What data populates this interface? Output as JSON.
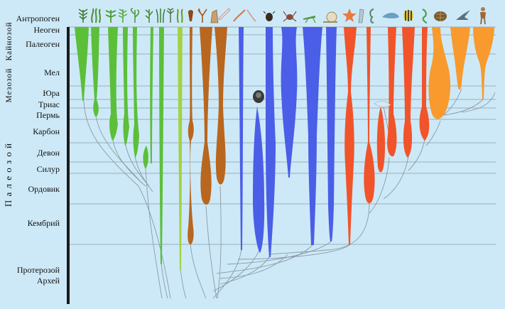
{
  "colors": {
    "background": "#cde9f7",
    "plants_dark": "#5cbf3a",
    "plants_light": "#9ad24a",
    "brown": "#b9661f",
    "blue": "#4a5ee8",
    "red": "#f1542a",
    "orange": "#f89a2e",
    "lines": "#8a9aa4"
  },
  "eras": [
    {
      "id": "kainozoi",
      "label": "Кайнозой"
    },
    {
      "id": "mezozoi",
      "label": "Мезозой"
    },
    {
      "id": "paleozoi",
      "label": "П а л е о з о й"
    }
  ],
  "periods": [
    {
      "id": "antropogen",
      "label": "Антропоген"
    },
    {
      "id": "neogen",
      "label": "Неоген"
    },
    {
      "id": "paleogen",
      "label": "Палеоген"
    },
    {
      "id": "mel",
      "label": "Мел"
    },
    {
      "id": "yura",
      "label": "Юра"
    },
    {
      "id": "trias",
      "label": "Триас"
    },
    {
      "id": "perm",
      "label": "Пермь"
    },
    {
      "id": "karbon",
      "label": "Карбон"
    },
    {
      "id": "devon",
      "label": "Девон"
    },
    {
      "id": "silur",
      "label": "Силур"
    },
    {
      "id": "ordovik",
      "label": "Ордовик"
    },
    {
      "id": "kembrii",
      "label": "Кембрий"
    },
    {
      "id": "proterozoi",
      "label": "Протерозой"
    },
    {
      "id": "arhei",
      "label": "Архей"
    }
  ],
  "icons": [
    "fern-icon",
    "algae-icon",
    "fern-icon",
    "leaf-icon",
    "sprout-icon",
    "branch-icon",
    "grass-icon",
    "horsetail-icon",
    "moss-icon",
    "mushroom-icon",
    "coral-icon",
    "sponge-icon",
    "worm-icon",
    "jellyfish-icon",
    "trilobite-icon",
    "beetle-icon",
    "crab-icon",
    "grasshopper-icon",
    "snail-icon",
    "starfish-icon",
    "sea-cucumber-icon",
    "seahorse-icon",
    "dolphin-icon",
    "fish-icon",
    "lizard-icon",
    "turtle-icon",
    "bird-icon",
    "human-icon"
  ]
}
